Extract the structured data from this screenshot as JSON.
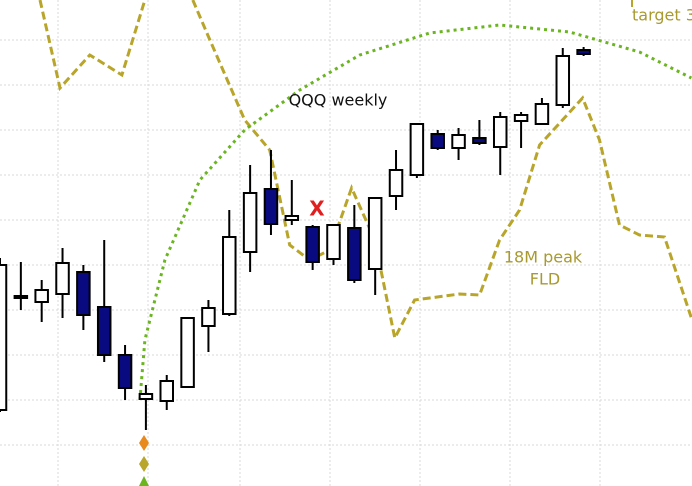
{
  "chart_data": {
    "type": "candlestick",
    "title": "QQQ weekly",
    "annotations": {
      "marker": "X",
      "fld_label_1": "18M peak",
      "fld_label_2": "FLD",
      "target": "target 3"
    },
    "xlim": [
      0,
      33.2
    ],
    "ylim": [
      0,
      486
    ],
    "up_color": "#ffffff",
    "down_color": "#0a0a80",
    "open": [
      76,
      188,
      184,
      192,
      214,
      179,
      131,
      87,
      85,
      99,
      160,
      172,
      234,
      297,
      266,
      259,
      227,
      258,
      217,
      290,
      311,
      352,
      338,
      348,
      339,
      365,
      362,
      381,
      436
    ],
    "high": [
      228,
      224,
      206,
      238,
      221,
      246,
      141,
      101,
      111,
      168,
      186,
      276,
      321,
      336,
      306,
      261,
      261,
      281,
      288,
      336,
      362,
      356,
      358,
      366,
      374,
      374,
      388,
      438,
      439
    ],
    "low": [
      74,
      176,
      164,
      168,
      156,
      124,
      86,
      56,
      76,
      98,
      134,
      170,
      214,
      251,
      261,
      216,
      221,
      203,
      191,
      276,
      308,
      336,
      326,
      341,
      311,
      338,
      362,
      378,
      430
    ],
    "close": [
      221,
      190,
      196,
      223,
      171,
      131,
      98,
      92,
      105,
      168,
      178,
      249,
      293,
      262,
      270,
      224,
      261,
      206,
      288,
      316,
      362,
      338,
      351,
      343,
      369,
      371,
      382,
      430,
      432
    ],
    "series": [
      {
        "name": "18M peak FLD",
        "color": "#b8a52a",
        "x": [
          1.92,
          2.88,
          4.31,
          5.85,
          6.95,
          null,
          9.25,
          10.07,
          11.74,
          12.94,
          13.9,
          14.86,
          15.82,
          16.87,
          17.98,
          18.94,
          19.89,
          22.05,
          23.01,
          23.97,
          24.93,
          25.89,
          27.95,
          28.76,
          29.72,
          30.68,
          31.88,
          33.17
        ],
        "values": [
          486,
          398,
          431,
          411,
          486,
          null,
          486,
          446,
          366,
          336,
          241,
          226,
          236,
          298,
          246,
          148,
          186,
          192,
          191,
          246,
          276,
          341,
          388,
          346,
          261,
          251,
          249,
          168
        ]
      },
      {
        "name": "envelope",
        "color": "#6ab520",
        "x": [
          6.71,
          6.95,
          7.91,
          9.59,
          11.74,
          14.38,
          17.26,
          20.61,
          23.97,
          27.33,
          30.68,
          33.17
        ],
        "values": [
          86,
          146,
          226,
          306,
          356,
          396,
          431,
          453,
          461,
          454,
          434,
          408
        ]
      }
    ]
  }
}
